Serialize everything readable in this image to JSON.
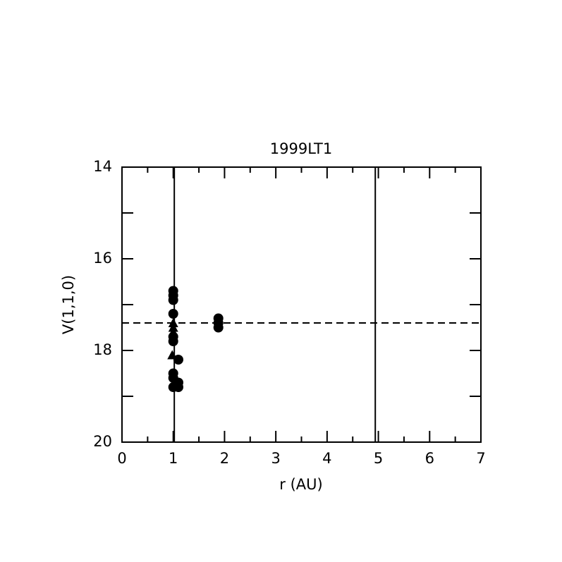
{
  "chart_data": {
    "type": "scatter",
    "title": "1999LT1",
    "x_label": "r (AU)",
    "y_label": "V(1,1,0)",
    "xlim": [
      0,
      7
    ],
    "xticks": [
      0,
      1,
      2,
      3,
      4,
      5,
      6,
      7
    ],
    "xminor_ticks": [
      0.5,
      1.5,
      2.5,
      3.5,
      4.5,
      5.5,
      6.5
    ],
    "ylim": [
      14,
      20
    ],
    "yticks": [
      14,
      16,
      18,
      20
    ],
    "yminor_ticks": [
      15,
      17,
      19
    ],
    "y_inverted": true,
    "reference_lines": {
      "x": [
        1.02,
        4.94
      ],
      "y": [
        17.4
      ]
    },
    "series": [
      {
        "marker": "circle",
        "color": "#000000",
        "x": [
          1.0,
          1.0,
          1.0,
          1.0,
          1.0,
          1.0,
          1.0,
          1.0,
          1.0,
          1.1,
          1.1,
          1.1,
          1.88,
          1.88,
          1.88
        ],
        "values": [
          16.7,
          16.8,
          16.9,
          17.2,
          17.7,
          17.8,
          18.5,
          18.6,
          18.8,
          18.2,
          18.7,
          18.8,
          17.3,
          17.4,
          17.5
        ]
      },
      {
        "marker": "triangle",
        "color": "#000000",
        "x": [
          1.0,
          1.0,
          1.0,
          0.98
        ],
        "values": [
          17.4,
          17.5,
          17.6,
          18.1
        ]
      }
    ]
  }
}
